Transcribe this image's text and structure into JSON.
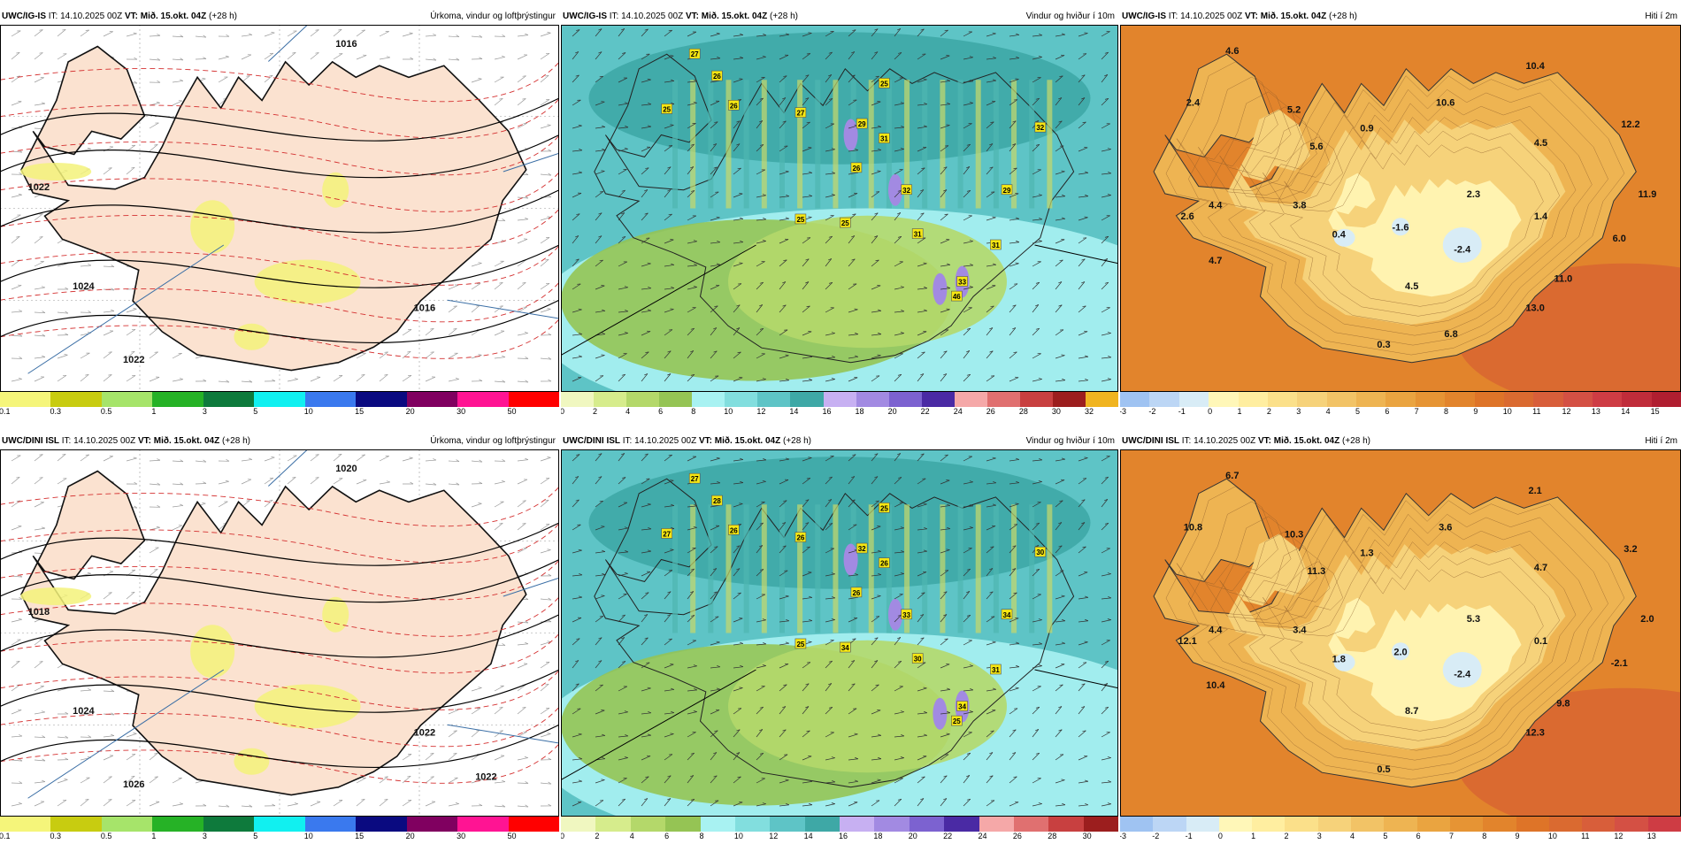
{
  "rows": [
    {
      "model": "UWC/IG-IS",
      "init": "IT: 14.10.2025 00Z",
      "vt_label": "VT:",
      "vt_value": "Mið. 15.okt. 04Z",
      "lead": "(+28 h)",
      "panels": {
        "precip": {
          "title": "Úrkoma, vindur og loftþrýstingur",
          "isobars": [
            "1016",
            "1022",
            "1024",
            "1016",
            "1022"
          ],
          "colorbar": {
            "ticks": [
              "0.1",
              "0.3",
              "0.5",
              "1",
              "3",
              "5",
              "10",
              "15",
              "20",
              "30",
              "50"
            ],
            "colors": [
              "#f5f57a",
              "#c8cc10",
              "#a6e46a",
              "#26b226",
              "#0e7a3c",
              "#11f0f0",
              "#3a79ee",
              "#0a0a80",
              "#800060",
              "#ff1493",
              "#ff0000"
            ]
          }
        },
        "wind": {
          "title": "Vindur og hviður í 10m",
          "labels": [
            "27",
            "26",
            "25",
            "26",
            "27",
            "25",
            "29",
            "31",
            "26",
            "32",
            "25",
            "25",
            "31",
            "32",
            "31",
            "29",
            "33",
            "46"
          ],
          "colorbar": {
            "ticks": [
              "0",
              "2",
              "4",
              "6",
              "8",
              "10",
              "12",
              "14",
              "16",
              "18",
              "20",
              "22",
              "24",
              "26",
              "28",
              "30",
              "32"
            ],
            "colors": [
              "#f0f7c0",
              "#d6ec8c",
              "#b4d86a",
              "#95c454",
              "#a8f2f2",
              "#82dede",
              "#5ec4c6",
              "#3ea8a6",
              "#c7b0f2",
              "#a28ae2",
              "#7c62d0",
              "#4a2aa4",
              "#f5a8a8",
              "#e07070",
              "#c84040",
              "#9c1e1e",
              "#f0b420"
            ]
          }
        },
        "temp": {
          "title": "Hiti í 2m",
          "labels": [
            "4.6",
            "10.4",
            "2.4",
            "5.2",
            "10.6",
            "0.9",
            "12.2",
            "5.6",
            "4.5",
            "2.3",
            "11.9",
            "2.6",
            "4.4",
            "3.8",
            "0.4",
            "-1.6",
            "1.4",
            "6.0",
            "-2.4",
            "4.7",
            "4.5",
            "11.0",
            "13.0",
            "0.3",
            "6.8"
          ],
          "colorbar": {
            "ticks": [
              "-3",
              "-2",
              "-1",
              "0",
              "1",
              "2",
              "3",
              "4",
              "5",
              "6",
              "7",
              "8",
              "9",
              "10",
              "11",
              "12",
              "13",
              "14",
              "15"
            ],
            "colors": [
              "#9fc3f2",
              "#bcd6f5",
              "#d8ecf6",
              "#fff7b8",
              "#ffeea0",
              "#fbe08a",
              "#f6d27a",
              "#f2c366",
              "#eeb452",
              "#eaa440",
              "#e69434",
              "#e2842c",
              "#de7428",
              "#da6a30",
              "#d85e3a",
              "#d45044",
              "#ce3c44",
              "#c02c3a",
              "#b01e30"
            ]
          }
        }
      }
    },
    {
      "model": "UWC/DINI ISL",
      "init": "IT: 14.10.2025 00Z",
      "vt_label": "VT:",
      "vt_value": "Mið. 15.okt. 04Z",
      "lead": "(+28 h)",
      "panels": {
        "precip": {
          "title": "Úrkoma, vindur og loftþrýstingur",
          "isobars": [
            "1020",
            "1018",
            "1024",
            "1022",
            "1026",
            "1022"
          ],
          "colorbar": {
            "ticks": [
              "0.1",
              "0.3",
              "0.5",
              "1",
              "3",
              "5",
              "10",
              "15",
              "20",
              "30",
              "50"
            ],
            "colors": [
              "#f5f57a",
              "#c8cc10",
              "#a6e46a",
              "#26b226",
              "#0e7a3c",
              "#11f0f0",
              "#3a79ee",
              "#0a0a80",
              "#800060",
              "#ff1493",
              "#ff0000"
            ]
          }
        },
        "wind": {
          "title": "Vindur og hviður í 10m",
          "labels": [
            "27",
            "28",
            "27",
            "26",
            "26",
            "25",
            "32",
            "26",
            "26",
            "33",
            "25",
            "34",
            "30",
            "30",
            "31",
            "34",
            "34",
            "25"
          ],
          "colorbar": {
            "ticks": [
              "0",
              "2",
              "4",
              "6",
              "8",
              "10",
              "12",
              "14",
              "16",
              "18",
              "20",
              "22",
              "24",
              "26",
              "28",
              "30"
            ],
            "colors": [
              "#f0f7c0",
              "#d6ec8c",
              "#b4d86a",
              "#95c454",
              "#a8f2f2",
              "#82dede",
              "#5ec4c6",
              "#3ea8a6",
              "#c7b0f2",
              "#a28ae2",
              "#7c62d0",
              "#4a2aa4",
              "#f5a8a8",
              "#e07070",
              "#c84040",
              "#9c1e1e"
            ]
          }
        },
        "temp": {
          "title": "Hiti í 2m",
          "labels": [
            "6.7",
            "2.1",
            "10.8",
            "10.3",
            "3.6",
            "1.3",
            "3.2",
            "11.3",
            "4.7",
            "5.3",
            "2.0",
            "12.1",
            "4.4",
            "3.4",
            "1.8",
            "2.0",
            "0.1",
            "-2.1",
            "-2.4",
            "10.4",
            "8.7",
            "9.8",
            "12.3",
            "0.5"
          ],
          "colorbar": {
            "ticks": [
              "-3",
              "-2",
              "-1",
              "0",
              "1",
              "2",
              "3",
              "4",
              "5",
              "6",
              "7",
              "8",
              "9",
              "10",
              "11",
              "12",
              "13"
            ],
            "colors": [
              "#9fc3f2",
              "#bcd6f5",
              "#d8ecf6",
              "#fff7b8",
              "#ffeea0",
              "#fbe08a",
              "#f6d27a",
              "#f2c366",
              "#eeb452",
              "#eaa440",
              "#e69434",
              "#e2842c",
              "#de7428",
              "#da6a30",
              "#d85e3a",
              "#d45044",
              "#ce3c44"
            ]
          }
        }
      }
    }
  ]
}
